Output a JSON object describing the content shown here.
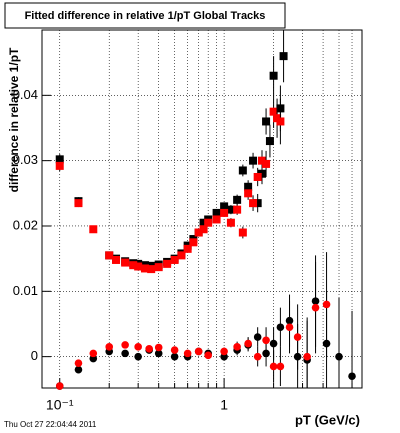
{
  "chart_data": {
    "type": "scatter",
    "title": "Fitted difference in relative 1/pT  Global Tracks",
    "x_label": "pT (GeV/c)",
    "y_label": "difference in relative 1/pT",
    "footer": "Thu Oct 27 22:04:44 2011",
    "x_log": true,
    "grid": true,
    "xlim": [
      0.078,
      6.9
    ],
    "ylim": [
      -0.0048,
      0.05
    ],
    "xticks": [
      {
        "value": 0.1,
        "label": "10⁻¹"
      },
      1
    ],
    "x_minor_ticks": [
      0.2,
      0.3,
      0.4,
      0.5,
      0.6,
      0.7,
      0.8,
      0.9,
      2,
      3,
      4,
      5,
      6
    ],
    "yticks": [
      0,
      0.01,
      0.02,
      0.03,
      0.04
    ],
    "series": [
      {
        "color": "#000000",
        "marker": "square",
        "x": [
          0.1,
          0.13,
          0.2,
          0.22,
          0.25,
          0.28,
          0.3,
          0.33,
          0.36,
          0.4,
          0.45,
          0.5,
          0.55,
          0.6,
          0.65,
          0.7,
          0.75,
          0.8,
          0.9,
          1.0,
          1.1,
          1.2,
          1.3,
          1.4,
          1.5,
          1.6,
          1.7,
          1.8,
          1.9,
          2.0,
          2.2,
          2.3
        ],
        "values": [
          0.0302,
          0.0238,
          0.0155,
          0.015,
          0.0146,
          0.0143,
          0.0142,
          0.014,
          0.0139,
          0.0141,
          0.0145,
          0.015,
          0.0158,
          0.017,
          0.018,
          0.019,
          0.0205,
          0.021,
          0.022,
          0.023,
          0.0225,
          0.024,
          0.0285,
          0.026,
          0.03,
          0.0235,
          0.028,
          0.036,
          0.033,
          0.043,
          0.038,
          0.046
        ],
        "errors": [
          0.0008,
          0.0006,
          0.0003,
          0.0003,
          0.0003,
          0.0003,
          0.0003,
          0.0003,
          0.0003,
          0.0003,
          0.0003,
          0.0003,
          0.0003,
          0.0003,
          0.0004,
          0.0004,
          0.0004,
          0.0005,
          0.0005,
          0.0006,
          0.0007,
          0.0008,
          0.0009,
          0.001,
          0.0012,
          0.0014,
          0.0016,
          0.002,
          0.0025,
          0.003,
          0.0035,
          0.004
        ]
      },
      {
        "color": "#ff0000",
        "marker": "square",
        "x": [
          0.1,
          0.13,
          0.16,
          0.2,
          0.22,
          0.25,
          0.28,
          0.3,
          0.33,
          0.36,
          0.4,
          0.45,
          0.5,
          0.55,
          0.6,
          0.65,
          0.7,
          0.75,
          0.8,
          0.9,
          1.0,
          1.1,
          1.2,
          1.3,
          1.4,
          1.5,
          1.6,
          1.7,
          1.8,
          2.0,
          2.1,
          2.2
        ],
        "values": [
          0.0292,
          0.0235,
          0.0195,
          0.0155,
          0.0148,
          0.0144,
          0.014,
          0.0138,
          0.0135,
          0.0134,
          0.0137,
          0.0142,
          0.0148,
          0.0155,
          0.0165,
          0.0175,
          0.019,
          0.0195,
          0.0205,
          0.021,
          0.022,
          0.0205,
          0.0225,
          0.019,
          0.025,
          0.0235,
          0.0275,
          0.03,
          0.0295,
          0.0375,
          0.0365,
          0.036
        ],
        "errors": [
          0.0008,
          0.0006,
          0.0004,
          0.0003,
          0.0003,
          0.0003,
          0.0003,
          0.0003,
          0.0003,
          0.0003,
          0.0003,
          0.0003,
          0.0003,
          0.0003,
          0.0003,
          0.0004,
          0.0004,
          0.0004,
          0.0005,
          0.0005,
          0.0006,
          0.0007,
          0.0008,
          0.0009,
          0.001,
          0.0012,
          0.0014,
          0.0016,
          0.002,
          0.0025,
          0.003,
          0.0035
        ]
      },
      {
        "color": "#000000",
        "marker": "circle",
        "x": [
          0.1,
          0.13,
          0.16,
          0.2,
          0.25,
          0.3,
          0.35,
          0.4,
          0.5,
          0.6,
          0.7,
          0.8,
          1.0,
          1.2,
          1.4,
          1.6,
          1.8,
          2.0,
          2.2,
          2.5,
          2.8,
          3.2,
          3.6,
          4.2,
          5.0,
          6.0
        ],
        "values": [
          -0.0045,
          -0.002,
          -0.0003,
          0.0008,
          0.0005,
          0.0,
          0.001,
          0.0005,
          0.0,
          0.0,
          0.0008,
          0.0005,
          0.0,
          0.001,
          0.0018,
          0.003,
          0.0005,
          0.002,
          0.0045,
          0.0055,
          0.0,
          -0.0005,
          0.0085,
          0.002,
          0.0,
          -0.003
        ],
        "errors": [
          0.0006,
          0.0005,
          0.0004,
          0.0003,
          0.0003,
          0.0003,
          0.0003,
          0.0003,
          0.0003,
          0.0004,
          0.0004,
          0.0005,
          0.0006,
          0.0008,
          0.001,
          0.0015,
          0.002,
          0.0025,
          0.003,
          0.004,
          0.005,
          0.006,
          0.007,
          0.008,
          0.009,
          0.01
        ]
      },
      {
        "color": "#ff0000",
        "marker": "circle",
        "x": [
          0.1,
          0.13,
          0.16,
          0.2,
          0.25,
          0.3,
          0.35,
          0.4,
          0.5,
          0.6,
          0.7,
          0.8,
          1.0,
          1.2,
          1.4,
          1.6,
          1.8,
          2.0,
          2.2,
          2.5,
          2.8,
          3.2,
          3.6,
          4.2
        ],
        "values": [
          -0.0045,
          -0.001,
          0.0005,
          0.0015,
          0.0018,
          0.0015,
          0.0012,
          0.0014,
          0.001,
          0.0005,
          0.0008,
          0.0002,
          0.0008,
          0.0015,
          0.002,
          0.0,
          0.0025,
          -0.0015,
          -0.0015,
          0.0045,
          0.003,
          0.0,
          0.0075,
          0.008
        ],
        "errors": [
          0.0006,
          0.0005,
          0.0004,
          0.0003,
          0.0003,
          0.0003,
          0.0003,
          0.0003,
          0.0003,
          0.0004,
          0.0004,
          0.0005,
          0.0006,
          0.0008,
          0.001,
          0.0015,
          0.002,
          0.0025,
          0.003,
          0.004,
          0.005,
          0.006,
          0.007,
          0.008
        ]
      }
    ]
  }
}
